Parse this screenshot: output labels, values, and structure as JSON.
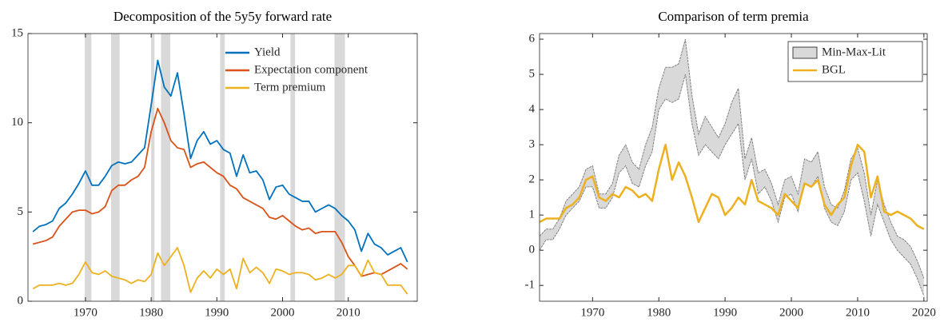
{
  "chart_data": [
    {
      "type": "line",
      "title": "Decomposition of the 5y5y forward rate",
      "x": [
        1962,
        1963,
        1964,
        1965,
        1966,
        1967,
        1968,
        1969,
        1970,
        1971,
        1972,
        1973,
        1974,
        1975,
        1976,
        1977,
        1978,
        1979,
        1980,
        1981,
        1982,
        1983,
        1984,
        1985,
        1986,
        1987,
        1988,
        1989,
        1990,
        1991,
        1992,
        1993,
        1994,
        1995,
        1996,
        1997,
        1998,
        1999,
        2000,
        2001,
        2002,
        2003,
        2004,
        2005,
        2006,
        2007,
        2008,
        2009,
        2010,
        2011,
        2012,
        2013,
        2014,
        2015,
        2016,
        2017,
        2018,
        2019
      ],
      "series": [
        {
          "name": "Yield",
          "color": "#0072BD",
          "values": [
            3.9,
            4.2,
            4.3,
            4.5,
            5.2,
            5.5,
            6.0,
            6.6,
            7.3,
            6.5,
            6.5,
            7.0,
            7.6,
            7.8,
            7.7,
            7.8,
            8.2,
            8.6,
            11.0,
            13.5,
            12.0,
            11.5,
            12.8,
            10.5,
            8.0,
            9.0,
            9.5,
            8.8,
            9.0,
            8.5,
            8.3,
            7.0,
            8.2,
            7.2,
            7.3,
            6.8,
            5.7,
            6.4,
            6.5,
            6.0,
            5.8,
            5.6,
            5.6,
            5.0,
            5.2,
            5.4,
            5.2,
            4.8,
            4.5,
            4.0,
            2.8,
            3.8,
            3.2,
            3.0,
            2.6,
            2.8,
            3.0,
            2.2
          ]
        },
        {
          "name": "Expectation component",
          "color": "#D95319",
          "values": [
            3.2,
            3.3,
            3.4,
            3.6,
            4.2,
            4.6,
            5.0,
            5.1,
            5.1,
            4.9,
            5.0,
            5.3,
            6.2,
            6.5,
            6.5,
            6.8,
            7.0,
            7.5,
            9.5,
            10.8,
            10.0,
            9.0,
            8.6,
            8.5,
            7.5,
            7.7,
            7.8,
            7.5,
            7.2,
            7.0,
            6.5,
            6.3,
            5.8,
            5.6,
            5.4,
            5.2,
            4.7,
            4.6,
            4.8,
            4.5,
            4.2,
            4.0,
            4.1,
            3.8,
            3.9,
            3.9,
            3.9,
            3.3,
            2.5,
            2.0,
            1.4,
            1.5,
            1.6,
            1.5,
            1.7,
            1.9,
            2.1,
            1.8
          ]
        },
        {
          "name": "Term premium",
          "color": "#EDB120",
          "values": [
            0.7,
            0.9,
            0.9,
            0.9,
            1.0,
            0.9,
            1.0,
            1.5,
            2.2,
            1.6,
            1.5,
            1.7,
            1.4,
            1.3,
            1.2,
            1.0,
            1.2,
            1.1,
            1.5,
            2.7,
            2.0,
            2.5,
            3.0,
            2.0,
            0.5,
            1.3,
            1.7,
            1.3,
            1.8,
            1.5,
            1.8,
            0.7,
            2.4,
            1.6,
            1.9,
            1.6,
            1.0,
            1.8,
            1.7,
            1.5,
            1.6,
            1.6,
            1.5,
            1.2,
            1.3,
            1.5,
            1.3,
            1.5,
            2.0,
            2.0,
            1.4,
            2.3,
            1.6,
            1.5,
            0.9,
            0.9,
            0.9,
            0.4
          ]
        }
      ],
      "shaded_periods": [
        [
          1969.9,
          1970.9
        ],
        [
          1973.9,
          1975.2
        ],
        [
          1980.0,
          1980.5
        ],
        [
          1981.5,
          1982.9
        ],
        [
          1990.5,
          1991.2
        ],
        [
          2001.2,
          2001.9
        ],
        [
          2007.9,
          2009.5
        ]
      ],
      "shade_color": "#d9d9d9",
      "xlim": [
        1961.25,
        2020.5
      ],
      "xticks": [
        1970,
        1980,
        1990,
        2000,
        2010
      ],
      "ylim": [
        0,
        15
      ],
      "yticks": [
        0,
        5,
        10,
        15
      ],
      "legend": "upper right",
      "legend_frame": false
    },
    {
      "type": "line",
      "title": "Comparison of term premia",
      "x": [
        1962,
        1963,
        1964,
        1965,
        1966,
        1967,
        1968,
        1969,
        1970,
        1971,
        1972,
        1973,
        1974,
        1975,
        1976,
        1977,
        1978,
        1979,
        1980,
        1981,
        1982,
        1983,
        1984,
        1985,
        1986,
        1987,
        1988,
        1989,
        1990,
        1991,
        1992,
        1993,
        1994,
        1995,
        1996,
        1997,
        1998,
        1999,
        2000,
        2001,
        2002,
        2003,
        2004,
        2005,
        2006,
        2007,
        2008,
        2009,
        2010,
        2011,
        2012,
        2013,
        2014,
        2015,
        2016,
        2017,
        2018,
        2019,
        2020
      ],
      "series": [
        {
          "name": "Min-Max-Lit",
          "color": "#d9d9d9",
          "lower": [
            0.0,
            0.3,
            0.3,
            0.6,
            1.0,
            1.2,
            1.4,
            1.8,
            1.8,
            1.2,
            1.2,
            1.5,
            2.2,
            2.4,
            1.9,
            1.8,
            2.4,
            2.8,
            4.0,
            4.3,
            4.2,
            4.3,
            5.0,
            3.6,
            2.7,
            3.0,
            2.8,
            2.6,
            3.0,
            3.3,
            3.6,
            2.0,
            2.6,
            1.6,
            1.8,
            1.4,
            0.8,
            1.5,
            1.6,
            1.1,
            1.9,
            1.8,
            2.1,
            1.2,
            0.8,
            0.7,
            1.1,
            2.0,
            2.2,
            1.4,
            0.4,
            1.3,
            0.8,
            0.3,
            0.0,
            -0.2,
            -0.4,
            -0.8,
            -1.3
          ],
          "upper": [
            0.4,
            0.6,
            0.6,
            0.9,
            1.4,
            1.6,
            1.8,
            2.3,
            2.4,
            1.6,
            1.6,
            1.9,
            2.7,
            3.0,
            2.5,
            2.3,
            3.0,
            3.5,
            4.6,
            5.2,
            5.2,
            5.3,
            6.0,
            4.4,
            3.3,
            3.8,
            3.5,
            3.2,
            3.6,
            4.2,
            4.6,
            2.6,
            3.2,
            2.2,
            2.3,
            1.9,
            1.3,
            2.0,
            2.1,
            1.6,
            2.6,
            2.5,
            2.8,
            1.8,
            1.3,
            1.2,
            1.7,
            2.6,
            2.9,
            2.2,
            1.0,
            2.0,
            1.3,
            0.8,
            0.4,
            0.3,
            0.1,
            -0.3,
            -0.8
          ]
        },
        {
          "name": "BGL",
          "color": "#EDB120",
          "values": [
            0.8,
            0.9,
            0.9,
            0.9,
            1.2,
            1.3,
            1.5,
            2.0,
            2.1,
            1.5,
            1.4,
            1.6,
            1.5,
            1.8,
            1.7,
            1.5,
            1.6,
            1.4,
            2.3,
            3.0,
            2.0,
            2.5,
            2.1,
            1.5,
            0.8,
            1.2,
            1.6,
            1.5,
            1.0,
            1.2,
            1.5,
            1.3,
            2.0,
            1.4,
            1.3,
            1.2,
            1.0,
            1.6,
            1.4,
            1.2,
            1.9,
            1.8,
            2.0,
            1.3,
            1.0,
            1.3,
            1.5,
            2.4,
            3.0,
            2.8,
            1.5,
            2.1,
            1.1,
            1.0,
            1.1,
            1.0,
            0.9,
            0.7,
            0.6
          ]
        }
      ],
      "xlim": [
        1962,
        2020.5
      ],
      "xticks": [
        1970,
        1980,
        1990,
        2000,
        2010,
        2020
      ],
      "ylim": [
        -1.45,
        6.16
      ],
      "yticks": [
        -1,
        0,
        1,
        2,
        3,
        4,
        5,
        6
      ],
      "legend": "upper right",
      "legend_frame": true
    }
  ]
}
